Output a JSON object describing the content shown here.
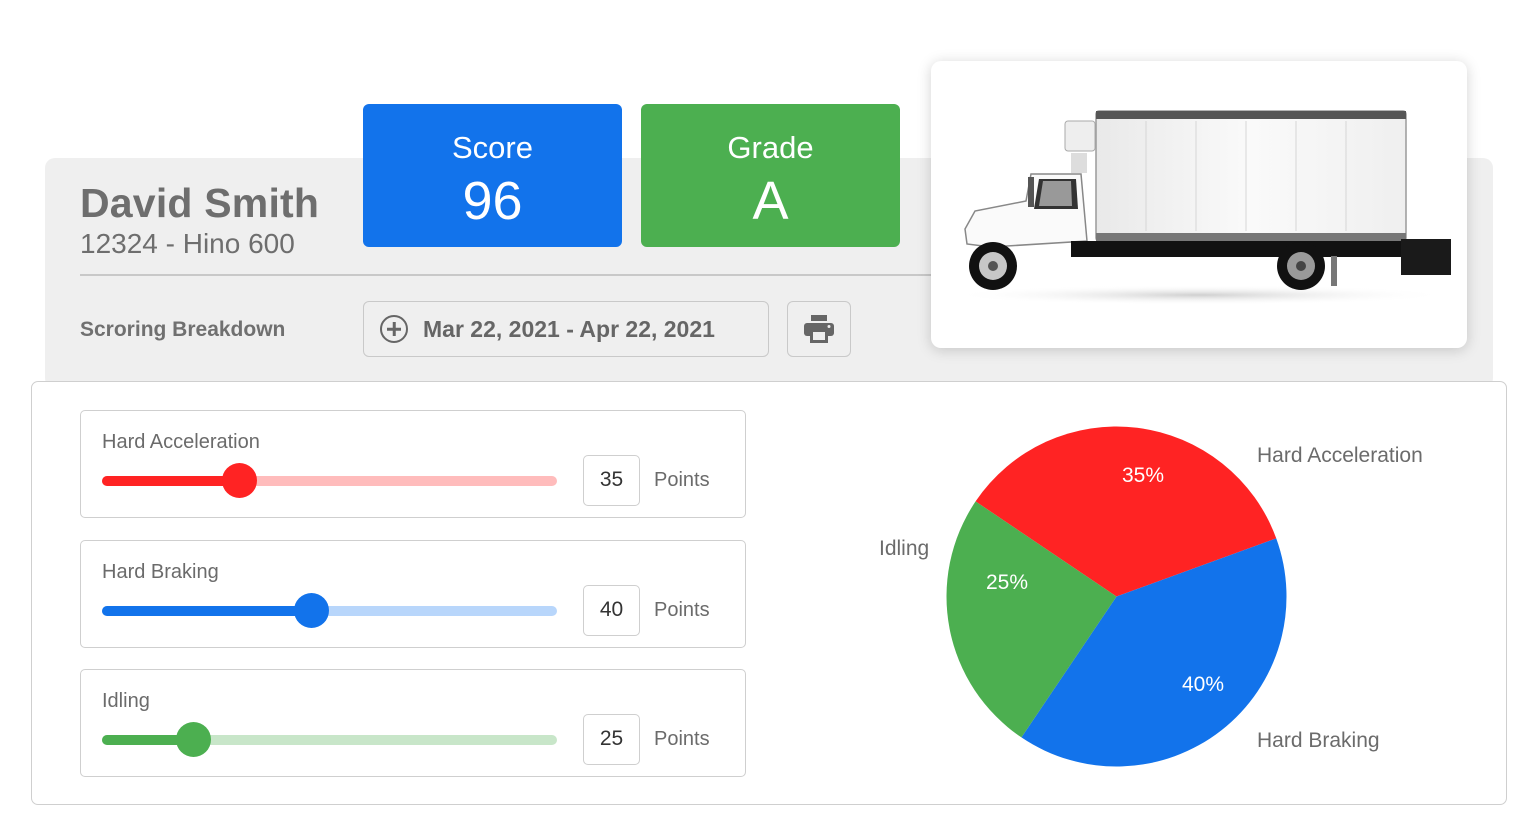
{
  "driver": {
    "name": "David Smith",
    "vehicle": "12324 - Hino 600"
  },
  "stats": {
    "score": {
      "label": "Score",
      "value": "96",
      "color": "#1273eb"
    },
    "grade": {
      "label": "Grade",
      "value": "A",
      "color": "#4caf50"
    }
  },
  "toolbar": {
    "section_label": "Scroring Breakdown",
    "date_range": "Mar 22, 2021 - Apr 22, 2021",
    "date_icon": "plus-circle-icon",
    "print_icon": "printer-icon"
  },
  "vehicle_image": {
    "alt": "white box truck",
    "icon": "truck-image"
  },
  "metrics": [
    {
      "label": "Hard Acceleration",
      "points": "35",
      "unit": "Points",
      "percent": 30,
      "color": "#ff2323",
      "track_color": "#ffbcbc"
    },
    {
      "label": "Hard Braking",
      "points": "40",
      "unit": "Points",
      "percent": 46,
      "color": "#1273eb",
      "track_color": "#b8d6fb"
    },
    {
      "label": "Idling",
      "points": "25",
      "unit": "Points",
      "percent": 20,
      "color": "#4caf50",
      "track_color": "#c8e6c9"
    }
  ],
  "chart_data": {
    "type": "pie",
    "title": "",
    "categories": [
      "Hard Acceleration",
      "Hard Braking",
      "Idling"
    ],
    "values": [
      35,
      40,
      25
    ],
    "labels": [
      "35%",
      "40%",
      "25%"
    ],
    "colors": [
      "#ff2323",
      "#1273eb",
      "#4caf50"
    ],
    "legend_position": "outside labels"
  }
}
